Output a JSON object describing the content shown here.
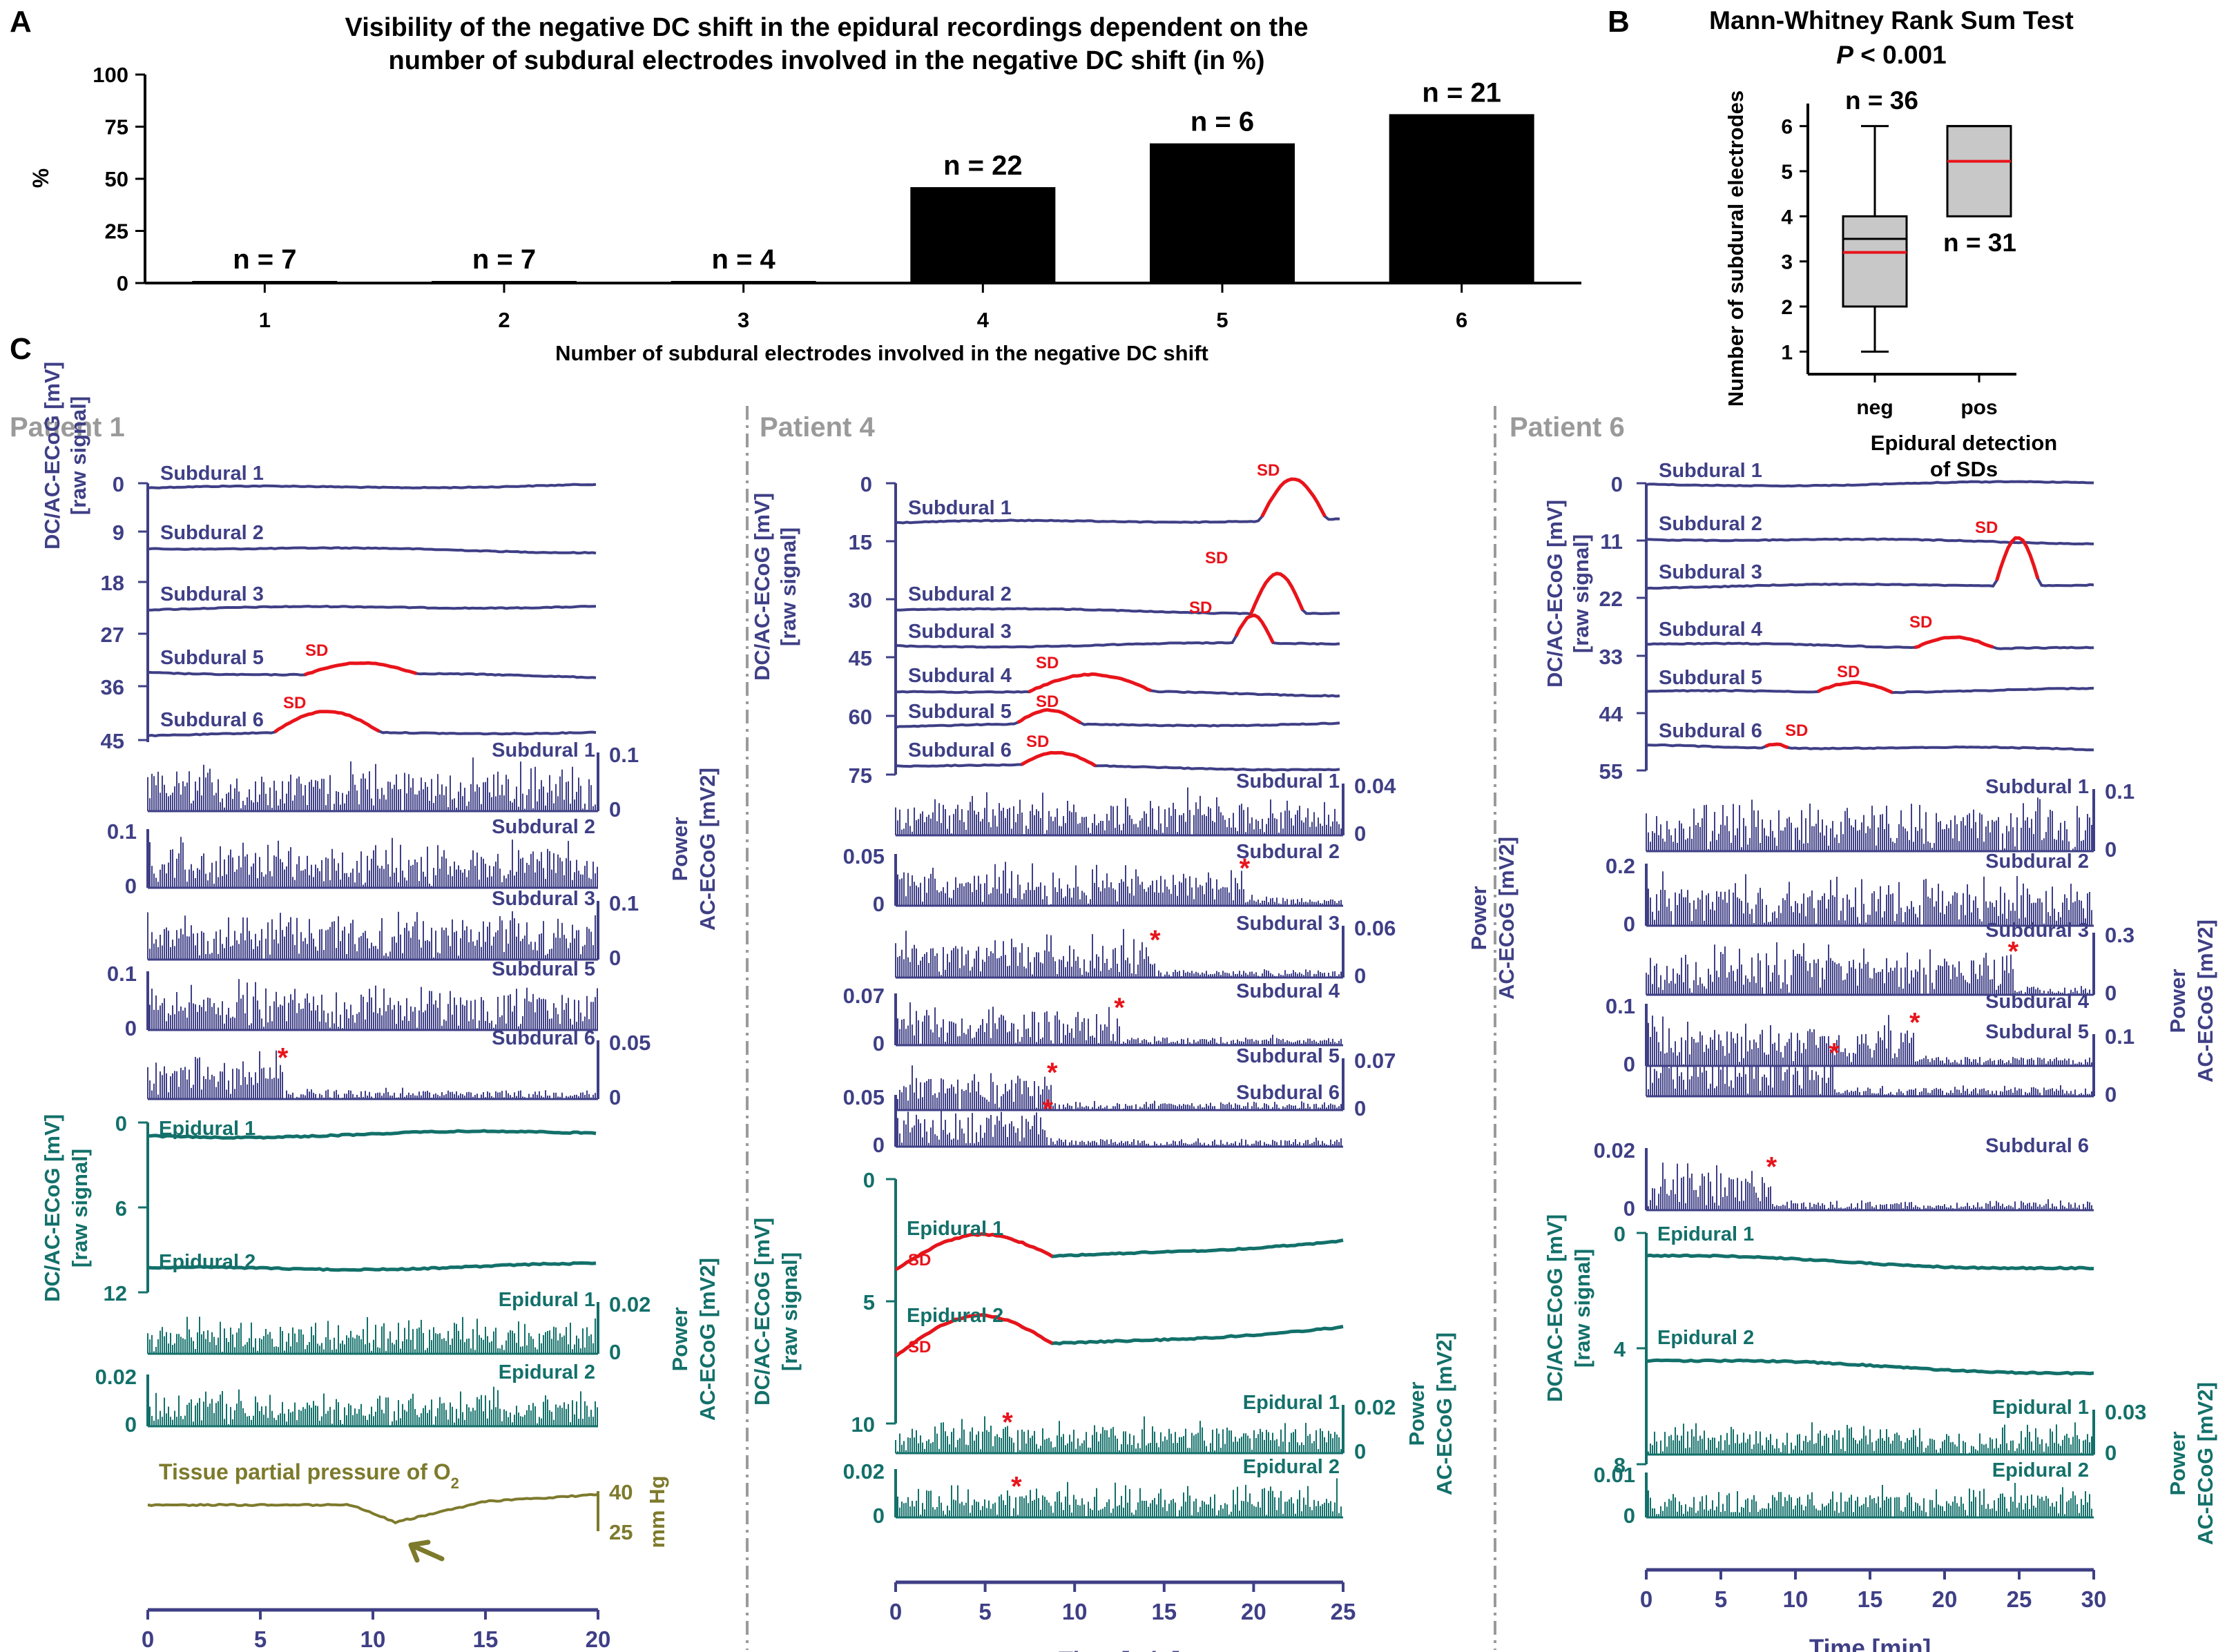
{
  "chart_data": [
    {
      "panel": "A",
      "type": "bar",
      "title": "Visibility of the negative DC shift in the epidural recordings dependent on the number of subdural electrodes involved in the negative DC shift (in %)",
      "title_lines": [
        "Visibility of the negative DC shift in the epidural recordings dependent on the",
        "number of subdural electrodes involved in the negative DC shift (in %)"
      ],
      "categories": [
        "1",
        "2",
        "3",
        "4",
        "5",
        "6"
      ],
      "values": [
        1,
        1,
        1,
        46,
        67,
        81
      ],
      "bar_labels": [
        "n = 7",
        "n = 7",
        "n = 4",
        "n = 22",
        "n = 6",
        "n = 21"
      ],
      "xlabel": "Number of subdural electrodes involved in the negative DC shift",
      "ylabel": "%",
      "ylim": [
        0,
        100
      ],
      "yticks": [
        "0",
        "25",
        "50",
        "75",
        "100"
      ],
      "color": "#000000"
    },
    {
      "panel": "B",
      "type": "box",
      "title": "Mann-Whitney Rank Sum Test",
      "subtitle_italic": "P",
      "subtitle_rest": " < 0.001",
      "ylabel": "Number of subdural electrodes",
      "xlabel_lines": [
        "Epidural detection",
        "of SDs"
      ],
      "categories": [
        "neg",
        "pos"
      ],
      "ylim": [
        0.5,
        6.5
      ],
      "yticks": [
        "1",
        "2",
        "3",
        "4",
        "5",
        "6"
      ],
      "boxes": [
        {
          "name": "neg",
          "min": 1,
          "q1": 2,
          "median": 3.5,
          "mean": 3.2,
          "q3": 4,
          "max": 6,
          "n_label": "n = 36"
        },
        {
          "name": "pos",
          "min": 4,
          "q1": 4,
          "median": 6,
          "mean": 5.22,
          "q3": 6,
          "max": 6,
          "n_label": "n = 31"
        }
      ],
      "mean_color": "#e8141b",
      "box_fill": "#c8c8c8"
    },
    {
      "panel": "C",
      "type": "line",
      "x_label": "Time [min]",
      "patients": [
        {
          "name": "Patient 1",
          "xlim": [
            0,
            20
          ],
          "xticks": [
            "0",
            "5",
            "10",
            "15",
            "20"
          ],
          "dc_subdural": {
            "ylabel1": "DC/AC-ECoG [mV]",
            "ylabel2": "[raw signal]",
            "yticks": [
              "0",
              "9",
              "18",
              "27",
              "36",
              "45"
            ],
            "traces": [
              "Subdural 1",
              "Subdural 2",
              "Subdural 3",
              "Subdural 5",
              "Subdural 6"
            ],
            "sd_label": "SD"
          },
          "power_subdural": {
            "ylabel1": "Power",
            "ylabel2": "AC-ECoG [mV2]",
            "channels": [
              {
                "name": "Subdural 1",
                "scale": "0.1",
                "zero": "0",
                "side": "right"
              },
              {
                "name": "Subdural 2",
                "scale": "0.1",
                "zero": "0",
                "side": "left"
              },
              {
                "name": "Subdural 3",
                "scale": "0.1",
                "zero": "0",
                "side": "right"
              },
              {
                "name": "Subdural 5",
                "scale": "0.1",
                "zero": "0",
                "side": "left"
              },
              {
                "name": "Subdural 6",
                "scale": "0.05",
                "zero": "0",
                "side": "right"
              }
            ]
          },
          "dc_epidural": {
            "ylabel1": "DC/AC-ECoG [mV]",
            "ylabel2": "[raw signal]",
            "yticks": [
              "0",
              "6",
              "12"
            ],
            "traces": [
              "Epidural 1",
              "Epidural 2"
            ]
          },
          "power_epidural": {
            "ylabel1": "Power",
            "ylabel2": "AC-ECoG [mV2]",
            "channels": [
              {
                "name": "Epidural 1",
                "scale": "0.02",
                "zero": "0",
                "side": "right"
              },
              {
                "name": "Epidural 2",
                "scale": "0.02",
                "zero": "0",
                "side": "left"
              }
            ]
          },
          "tissue_po2": {
            "label": "Tissue partial pressure of O",
            "label_sub": "2",
            "yticks": [
              "40",
              "25"
            ],
            "unit": "mm Hg",
            "color": "#7d7a2c"
          }
        },
        {
          "name": "Patient 4",
          "xlim": [
            0,
            25
          ],
          "xticks": [
            "0",
            "5",
            "10",
            "15",
            "20",
            "25"
          ],
          "dc_subdural": {
            "ylabel1": "DC/AC-ECoG [mV]",
            "ylabel2": "[raw signal]",
            "yticks": [
              "0",
              "15",
              "30",
              "45",
              "60",
              "75"
            ],
            "traces": [
              "Subdural 1",
              "Subdural 2",
              "Subdural 3",
              "Subdural 4",
              "Subdural 5",
              "Subdural 6"
            ],
            "sd_label": "SD"
          },
          "power_subdural": {
            "ylabel1": "Power",
            "ylabel2": "AC-ECoG [mV2]",
            "channels": [
              {
                "name": "Subdural 1",
                "scale": "0.04",
                "zero": "0",
                "side": "right"
              },
              {
                "name": "Subdural 2",
                "scale": "0.05",
                "zero": "0",
                "side": "left"
              },
              {
                "name": "Subdural 3",
                "scale": "0.06",
                "zero": "0",
                "side": "right"
              },
              {
                "name": "Subdural 4",
                "scale": "0.07",
                "zero": "0",
                "side": "left"
              },
              {
                "name": "Subdural 5",
                "scale": "0.07",
                "zero": "0",
                "side": "right"
              },
              {
                "name": "Subdural 6",
                "scale": "0.05",
                "zero": "0",
                "side": "left"
              }
            ]
          },
          "dc_epidural": {
            "ylabel1": "DC/AC-ECoG [mV]",
            "ylabel2": "[raw signal]",
            "yticks": [
              "0",
              "5",
              "10"
            ],
            "traces": [
              "Epidural 1",
              "Epidural 2"
            ]
          },
          "power_epidural": {
            "ylabel1": "Power",
            "ylabel2": "AC-ECoG [mV2]",
            "channels": [
              {
                "name": "Epidural 1",
                "scale": "0.02",
                "zero": "0",
                "side": "right"
              },
              {
                "name": "Epidural 2",
                "scale": "0.02",
                "zero": "0",
                "side": "left"
              }
            ]
          }
        },
        {
          "name": "Patient 6",
          "xlim": [
            0,
            30
          ],
          "xticks": [
            "0",
            "5",
            "10",
            "15",
            "20",
            "25",
            "30"
          ],
          "dc_subdural": {
            "ylabel1": "DC/AC-ECoG [mV]",
            "ylabel2": "[raw signal]",
            "yticks": [
              "0",
              "11",
              "22",
              "33",
              "44",
              "55"
            ],
            "traces": [
              "Subdural 1",
              "Subdural 2",
              "Subdural 3",
              "Subdural 4",
              "Subdural 5",
              "Subdural 6"
            ],
            "sd_label": "SD"
          },
          "power_subdural": {
            "ylabel1": "Power",
            "ylabel2": "AC-ECoG [mV2]",
            "channels": [
              {
                "name": "Subdural 1",
                "scale": "0.1",
                "zero": "0",
                "side": "right"
              },
              {
                "name": "Subdural 2",
                "scale": "0.2",
                "zero": "0",
                "side": "left"
              },
              {
                "name": "Subdural 3",
                "scale": "0.3",
                "zero": "0",
                "side": "right"
              },
              {
                "name": "Subdural 4",
                "scale": "0.1",
                "zero": "0",
                "side": "left"
              },
              {
                "name": "Subdural 5",
                "scale": "0.1",
                "zero": "0",
                "side": "right"
              },
              {
                "name": "Subdural 6",
                "scale": "0.02",
                "zero": "0",
                "side": "left"
              }
            ]
          },
          "dc_epidural": {
            "ylabel1": "DC/AC-ECoG [mV]",
            "ylabel2": "[raw signal]",
            "yticks": [
              "0",
              "4",
              "8"
            ],
            "traces": [
              "Epidural 1",
              "Epidural 2"
            ]
          },
          "power_epidural": {
            "ylabel1": "Power",
            "ylabel2": "AC-ECoG [mV2]",
            "channels": [
              {
                "name": "Epidural 1",
                "scale": "0.03",
                "zero": "0",
                "side": "right"
              },
              {
                "name": "Epidural 2",
                "scale": "0.01",
                "zero": "0",
                "side": "left"
              }
            ]
          }
        }
      ],
      "colors": {
        "subdural": "#3f3f86",
        "epidural": "#13706a",
        "sd": "#e8141b",
        "po2": "#7d7a2c",
        "separator": "#9a9a9a"
      }
    }
  ],
  "panel_labels": {
    "a": "A",
    "b": "B",
    "c": "C"
  },
  "marker_star": "*"
}
